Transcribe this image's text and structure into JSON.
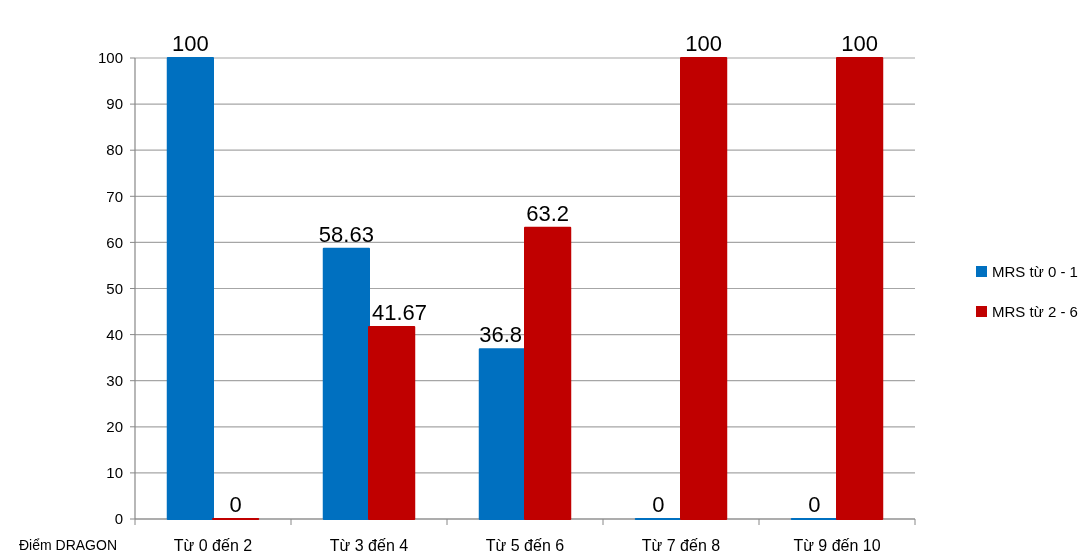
{
  "chart_data": {
    "type": "bar",
    "xlabel": "Điểm DRAGON",
    "categories": [
      "Từ 0 đến 2",
      "Từ 3 đến 4",
      "Từ 5 đến 6",
      "Từ 7 đến 8",
      "Từ 9 đến 10"
    ],
    "series": [
      {
        "name": "MRS từ 0 - 1",
        "color": "#0070c0",
        "values": [
          100,
          58.63,
          36.8,
          0,
          0
        ]
      },
      {
        "name": "MRS từ 2 - 6",
        "color": "#c00000",
        "values": [
          0,
          41.67,
          63.2,
          100,
          100
        ]
      }
    ],
    "ylim": [
      0,
      100
    ],
    "yticks": [
      0,
      10,
      20,
      30,
      40,
      50,
      60,
      70,
      80,
      90,
      100
    ],
    "grid": "y",
    "data_labels": true,
    "legend": "right"
  }
}
